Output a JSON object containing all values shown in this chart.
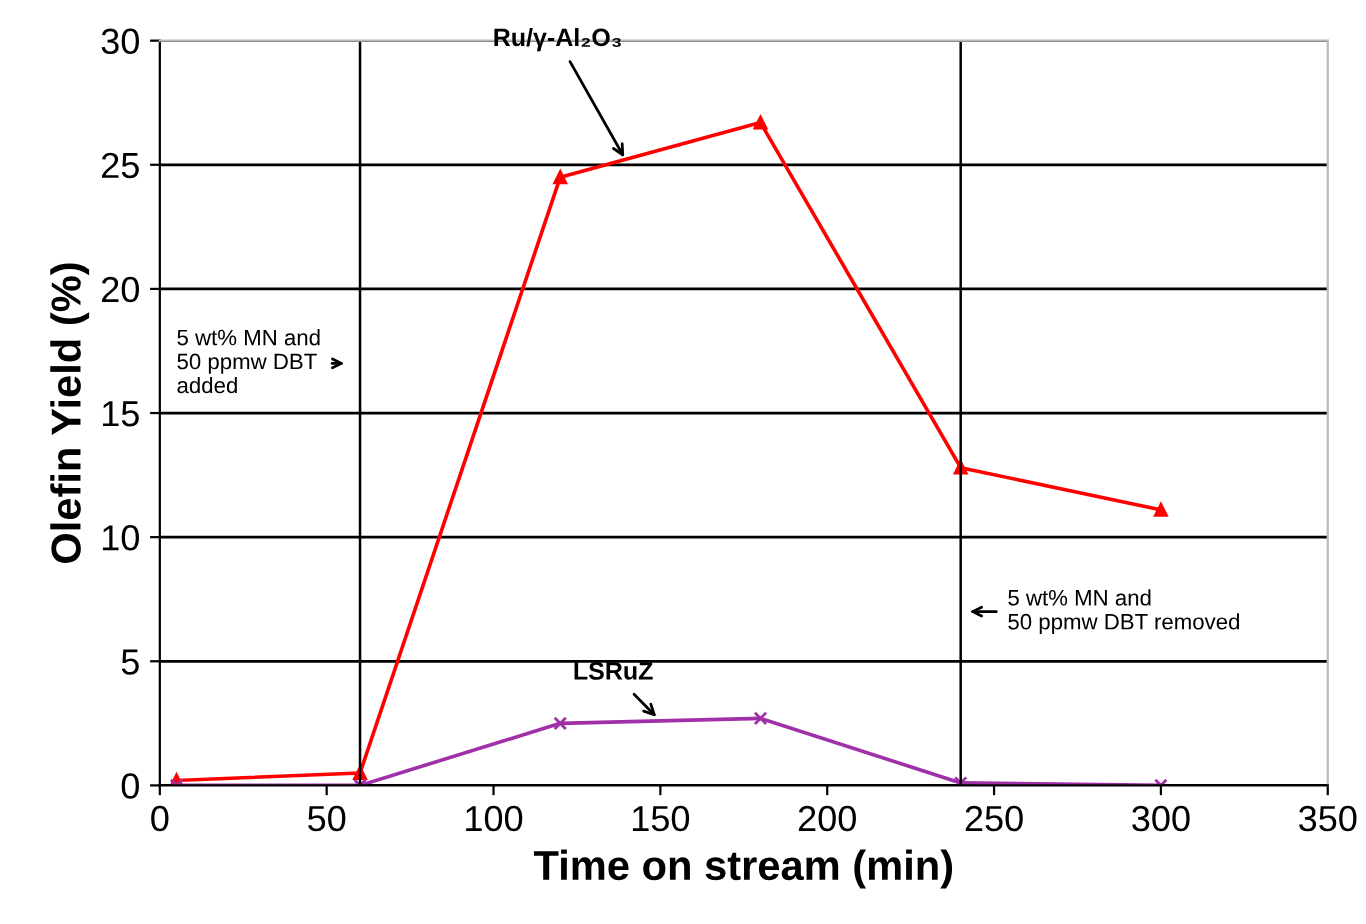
{
  "chart_data": {
    "type": "line",
    "xlabel": "Time on stream (min)",
    "ylabel": "Olefin Yield (%)",
    "xlim": [
      0,
      350
    ],
    "xticks": [
      0,
      50,
      100,
      150,
      200,
      250,
      300,
      350
    ],
    "ylim": [
      0,
      30
    ],
    "yticks": [
      0,
      5,
      10,
      15,
      20,
      25,
      30
    ],
    "grid": "y",
    "x": [
      5,
      60,
      120,
      180,
      240,
      300
    ],
    "series": [
      {
        "color": "#ff0000",
        "marker": "triangle",
        "values": [
          0.2,
          0.5,
          24.5,
          26.7,
          12.8,
          11.1
        ]
      },
      {
        "color": "#a030a8",
        "marker": "cross",
        "values": [
          0,
          0,
          2.5,
          2.7,
          0.1,
          0
        ]
      }
    ],
    "annotations": [
      {
        "text": "Ru/γ-Al₂O₃",
        "x": 140,
        "y": 25.1
      },
      {
        "text": "LSRuZ",
        "x": 150,
        "y": 2.6
      }
    ],
    "ref_lines": [
      {
        "axis": "x",
        "value": 60,
        "label": "5 wt% MN and\n50 ppmw DBT\nadded",
        "color": "#000000"
      },
      {
        "axis": "x",
        "value": 240,
        "label": "5 wt% MN and\n50 ppmw DBT removed",
        "color": "#000000"
      }
    ]
  }
}
